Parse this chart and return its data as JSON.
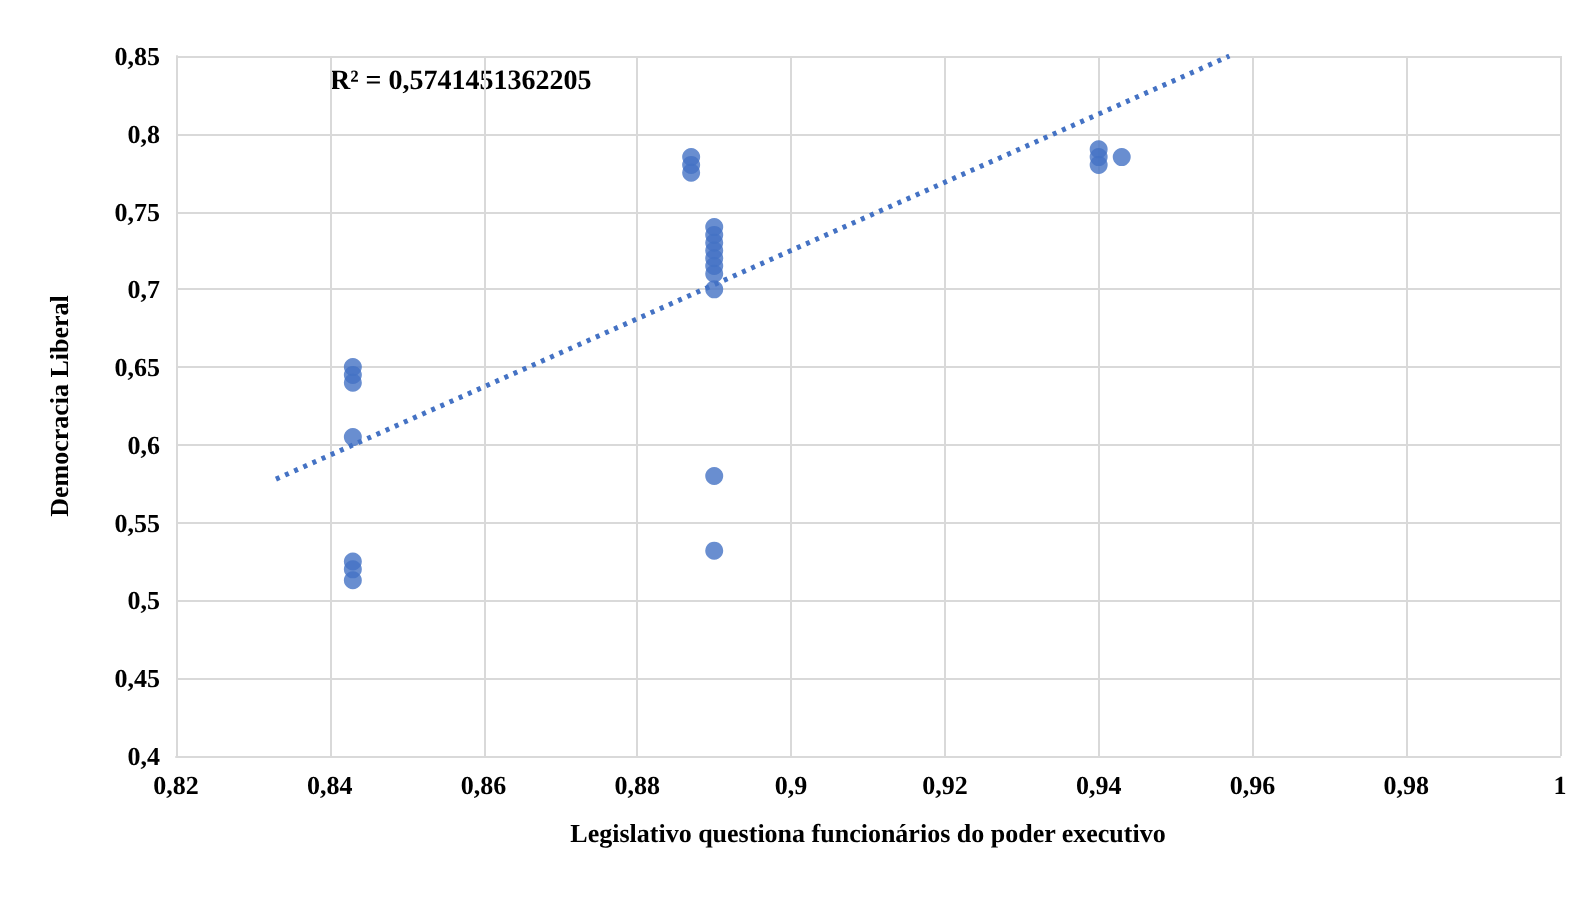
{
  "chart_data": {
    "type": "scatter",
    "xlabel": "Legislativo questiona funcionários do poder executivo",
    "ylabel": "Democracia Liberal",
    "annotations": [
      "R² = 0,5741451362205"
    ],
    "series": [
      {
        "color": "#4472c4",
        "marker": "circle",
        "x": [
          0.843,
          0.843,
          0.843,
          0.843,
          0.843,
          0.843,
          0.843,
          0.887,
          0.887,
          0.887,
          0.89,
          0.89,
          0.89,
          0.89,
          0.89,
          0.89,
          0.89,
          0.89,
          0.89,
          0.89,
          0.94,
          0.94,
          0.94,
          0.943
        ],
        "values": [
          0.65,
          0.645,
          0.64,
          0.605,
          0.525,
          0.52,
          0.513,
          0.785,
          0.78,
          0.775,
          0.74,
          0.735,
          0.73,
          0.725,
          0.72,
          0.715,
          0.71,
          0.7,
          0.58,
          0.532,
          0.79,
          0.785,
          0.78,
          0.785
        ]
      },
      {
        "type": "line",
        "color": "#4472c4",
        "marker": "none",
        "line_style": "dotted",
        "x": [
          0.833,
          0.957
        ],
        "values": [
          0.578,
          0.85
        ]
      }
    ],
    "xlim": [
      0.82,
      1
    ],
    "xticks": [
      {
        "value": 0.82,
        "label": "0,82"
      },
      {
        "value": 0.84,
        "label": "0,84"
      },
      {
        "value": 0.86,
        "label": "0,86"
      },
      {
        "value": 0.88,
        "label": "0,88"
      },
      {
        "value": 0.9,
        "label": "0,9"
      },
      {
        "value": 0.92,
        "label": "0,92"
      },
      {
        "value": 0.94,
        "label": "0,94"
      },
      {
        "value": 0.96,
        "label": "0,96"
      },
      {
        "value": 0.98,
        "label": "0,98"
      },
      {
        "value": 1,
        "label": "1"
      }
    ],
    "ylim": [
      0.4,
      0.85
    ],
    "yticks": [
      {
        "value": 0.4,
        "label": "0,4"
      },
      {
        "value": 0.45,
        "label": "0,45"
      },
      {
        "value": 0.5,
        "label": "0,5"
      },
      {
        "value": 0.55,
        "label": "0,55"
      },
      {
        "value": 0.6,
        "label": "0,6"
      },
      {
        "value": 0.65,
        "label": "0,65"
      },
      {
        "value": 0.7,
        "label": "0,7"
      },
      {
        "value": 0.75,
        "label": "0,75"
      },
      {
        "value": 0.8,
        "label": "0,8"
      },
      {
        "value": 0.85,
        "label": "0,85"
      }
    ],
    "grid": true
  }
}
